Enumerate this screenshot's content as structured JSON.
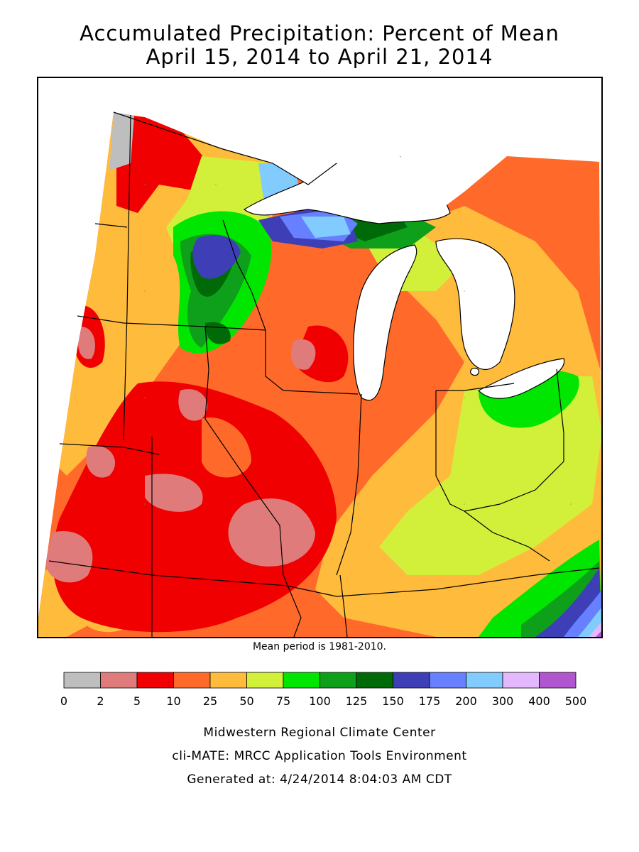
{
  "title": {
    "line1": "Accumulated Precipitation: Percent of Mean",
    "line2": "April 15, 2014 to April 21, 2014"
  },
  "mean_note": "Mean period is 1981-2010.",
  "legend": {
    "bins": [
      {
        "color": "#bebebe"
      },
      {
        "color": "#e07b7b"
      },
      {
        "color": "#f00000"
      },
      {
        "color": "#ff6a2a"
      },
      {
        "color": "#ffbb3c"
      },
      {
        "color": "#d2ef3a"
      },
      {
        "color": "#00e600"
      },
      {
        "color": "#0fa01b"
      },
      {
        "color": "#006a08"
      },
      {
        "color": "#3e3eb7"
      },
      {
        "color": "#6680ff"
      },
      {
        "color": "#82cbff"
      },
      {
        "color": "#e3b8ff"
      },
      {
        "color": "#b057cf"
      }
    ],
    "tick_labels": [
      "0",
      "2",
      "5",
      "10",
      "25",
      "50",
      "75",
      "100",
      "125",
      "150",
      "175",
      "200",
      "300",
      "400",
      "500"
    ]
  },
  "credits": {
    "line1": "Midwestern Regional Climate Center",
    "line2": "cli-MATE: MRCC Application Tools Environment",
    "line3": "Generated at: 4/24/2014 8:04:03 AM CDT"
  }
}
